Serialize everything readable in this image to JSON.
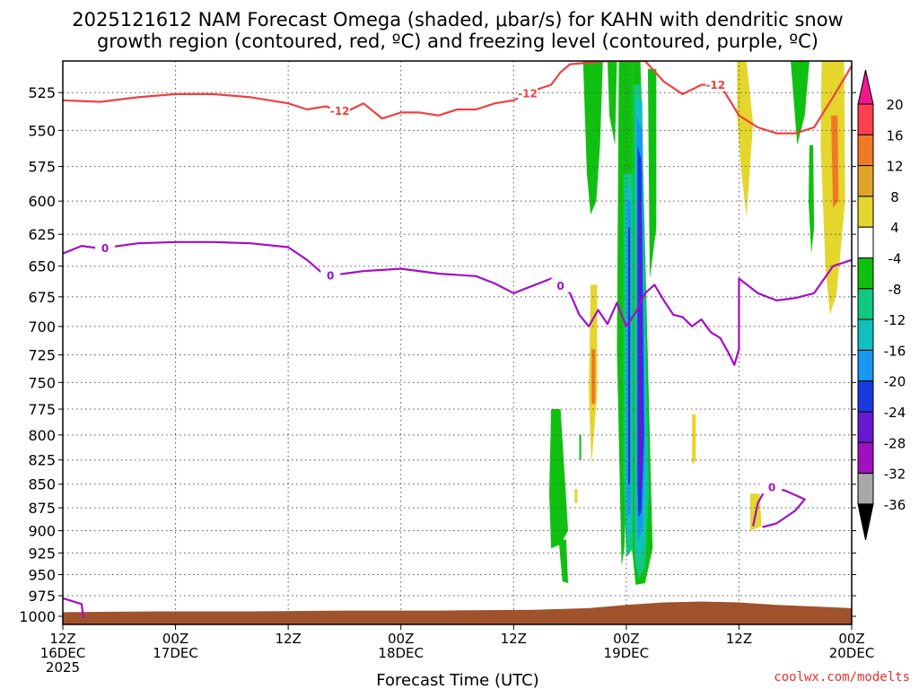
{
  "chart_data": {
    "type": "heatmap",
    "title_lines": [
      "2025121612 NAM Forecast Omega (shaded, μbar/s) for KAHN with dendritic snow",
      "growth region (contoured, red, ºC) and freezing level (contoured, purple, ºC)"
    ],
    "xlabel": "Forecast Time (UTC)",
    "x_ticks": [
      {
        "h": 0,
        "l1": "12Z",
        "l2": "16DEC",
        "l3": "2025"
      },
      {
        "h": 12,
        "l1": "00Z",
        "l2": "17DEC"
      },
      {
        "h": 24,
        "l1": "12Z"
      },
      {
        "h": 36,
        "l1": "00Z",
        "l2": "18DEC"
      },
      {
        "h": 48,
        "l1": "12Z"
      },
      {
        "h": 60,
        "l1": "00Z",
        "l2": "19DEC"
      },
      {
        "h": 72,
        "l1": "12Z"
      },
      {
        "h": 84,
        "l1": "00Z",
        "l2": "20DEC"
      }
    ],
    "x_range_hours": [
      0,
      84
    ],
    "y_ticks": [
      525,
      550,
      575,
      600,
      625,
      650,
      675,
      700,
      725,
      750,
      775,
      800,
      825,
      850,
      875,
      900,
      925,
      950,
      975,
      1000
    ],
    "y_range_hpa": [
      505,
      1010
    ],
    "y_scale": "log-pressure, inverted",
    "grid": true,
    "colorbar": {
      "labels": [
        "20",
        "16",
        "12",
        "8",
        "4",
        "-4",
        "-8",
        "-12",
        "-16",
        "-20",
        "-24",
        "-28",
        "-32",
        "-36"
      ],
      "colors": [
        "#ff4050",
        "#f07a24",
        "#e2a428",
        "#e4d62c",
        "#ffffff",
        "#10c010",
        "#10c880",
        "#10c0c0",
        "#1898f0",
        "#1838e0",
        "#6818d0",
        "#a010c0",
        "#a8a8a8"
      ],
      "top_arrow_color": "#f0188c",
      "bottom_arrow_color": "#000000"
    },
    "series": [
      {
        "name": "dendritic snow growth region (contoured, red, ºC)",
        "contour_value": "-12",
        "color": "#f04040",
        "points": [
          [
            0,
            530
          ],
          [
            4,
            531
          ],
          [
            8,
            528
          ],
          [
            12,
            526
          ],
          [
            16,
            526
          ],
          [
            20,
            528
          ],
          [
            24,
            532
          ],
          [
            26,
            536
          ],
          [
            28,
            534
          ],
          [
            30,
            538
          ],
          [
            32,
            532
          ],
          [
            34,
            542
          ],
          [
            36,
            538
          ],
          [
            38,
            538
          ],
          [
            40,
            540
          ],
          [
            42,
            536
          ],
          [
            44,
            536
          ],
          [
            46,
            532
          ],
          [
            48,
            530
          ],
          [
            50,
            524
          ],
          [
            52,
            520
          ],
          [
            53,
            512
          ],
          [
            54,
            507
          ],
          [
            56,
            506
          ],
          [
            58,
            505
          ],
          [
            62,
            505
          ],
          [
            64,
            518
          ],
          [
            66,
            526
          ],
          [
            68,
            520
          ],
          [
            70,
            520
          ],
          [
            72,
            540
          ],
          [
            74,
            548
          ],
          [
            76,
            552
          ],
          [
            78,
            552
          ],
          [
            80,
            548
          ],
          [
            82,
            528
          ],
          [
            84,
            508
          ]
        ],
        "labels_at_hours": [
          29.5,
          49.5,
          69.5
        ]
      },
      {
        "name": "freezing level (contoured, purple, ºC)",
        "contour_value": "0",
        "color": "#a010c8",
        "points": [
          [
            0,
            640
          ],
          [
            2,
            634
          ],
          [
            4,
            636
          ],
          [
            8,
            632
          ],
          [
            12,
            631
          ],
          [
            16,
            631
          ],
          [
            20,
            632
          ],
          [
            24,
            635
          ],
          [
            26,
            645
          ],
          [
            28,
            658
          ],
          [
            30,
            656
          ],
          [
            32,
            654
          ],
          [
            34,
            653
          ],
          [
            36,
            652
          ],
          [
            40,
            656
          ],
          [
            44,
            658
          ],
          [
            46,
            664
          ],
          [
            48,
            672
          ],
          [
            50,
            666
          ],
          [
            52,
            660
          ],
          [
            54,
            672
          ],
          [
            55,
            690
          ],
          [
            56,
            700
          ],
          [
            57,
            686
          ],
          [
            58,
            698
          ],
          [
            59,
            680
          ],
          [
            60,
            700
          ],
          [
            61,
            688
          ],
          [
            62,
            672
          ],
          [
            63,
            665
          ],
          [
            64,
            678
          ],
          [
            65,
            690
          ],
          [
            66,
            692
          ],
          [
            67,
            700
          ],
          [
            68,
            694
          ],
          [
            69,
            705
          ],
          [
            70,
            710
          ],
          [
            71,
            725
          ],
          [
            71.5,
            734
          ],
          [
            72,
            720
          ],
          [
            72,
            660
          ],
          [
            74,
            672
          ],
          [
            76,
            678
          ],
          [
            78,
            676
          ],
          [
            80,
            672
          ],
          [
            82,
            650
          ],
          [
            84,
            645
          ]
        ],
        "labels_at_hours": [
          4.5,
          28.5,
          53.0
        ]
      },
      {
        "name": "freezing level low-level segment",
        "contour_value": "0",
        "color": "#a010c8",
        "points": [
          [
            0,
            978
          ],
          [
            2,
            985
          ],
          [
            2.2,
            1002
          ]
        ]
      },
      {
        "name": "freezing level closed contour",
        "contour_value": "0",
        "color": "#a010c8",
        "points": [
          [
            73.5,
            895
          ],
          [
            74,
            870
          ],
          [
            75,
            852
          ],
          [
            77,
            857
          ],
          [
            79,
            866
          ],
          [
            78,
            878
          ],
          [
            76,
            892
          ],
          [
            74.5,
            896
          ]
        ],
        "labels_at_hours": [
          75.5
        ]
      }
    ],
    "terrain": {
      "color": "#a0522d",
      "top_pressure": [
        [
          0,
          995
        ],
        [
          10,
          994
        ],
        [
          20,
          994
        ],
        [
          30,
          993
        ],
        [
          40,
          993
        ],
        [
          50,
          992
        ],
        [
          56,
          990
        ],
        [
          60,
          986
        ],
        [
          64,
          983
        ],
        [
          68,
          982
        ],
        [
          72,
          983
        ],
        [
          76,
          986
        ],
        [
          80,
          988
        ],
        [
          84,
          990
        ]
      ]
    },
    "shaded_regions": [
      {
        "color": "#e4d62c",
        "pts": [
          [
            71.8,
            505
          ],
          [
            72.8,
            505
          ],
          [
            73.5,
            545
          ],
          [
            72.8,
            612
          ],
          [
            72.2,
            575
          ],
          [
            71.8,
            540
          ]
        ]
      },
      {
        "color": "#e4d62c",
        "pts": [
          [
            80.8,
            505
          ],
          [
            83.2,
            505
          ],
          [
            83.3,
            600
          ],
          [
            82.4,
            672
          ],
          [
            81.7,
            690
          ],
          [
            81.2,
            650
          ],
          [
            80.7,
            560
          ]
        ]
      },
      {
        "color": "#f07a24",
        "pts": [
          [
            81.8,
            540
          ],
          [
            82.5,
            540
          ],
          [
            82.6,
            600
          ],
          [
            82.0,
            605
          ]
        ]
      },
      {
        "color": "#10c010",
        "pts": [
          [
            77.5,
            505
          ],
          [
            79.5,
            505
          ],
          [
            79.0,
            540
          ],
          [
            78.2,
            560
          ]
        ]
      },
      {
        "color": "#10c010",
        "pts": [
          [
            79.5,
            560
          ],
          [
            79.9,
            560
          ],
          [
            80.0,
            620
          ],
          [
            79.7,
            640
          ],
          [
            79.4,
            600
          ]
        ]
      },
      {
        "color": "#e4d62c",
        "pts": [
          [
            56.2,
            665
          ],
          [
            56.9,
            665
          ],
          [
            56.9,
            760
          ],
          [
            56.3,
            830
          ],
          [
            56.0,
            760
          ]
        ]
      },
      {
        "color": "#f07a24",
        "pts": [
          [
            56.3,
            720
          ],
          [
            56.7,
            720
          ],
          [
            56.7,
            770
          ],
          [
            56.3,
            770
          ]
        ]
      },
      {
        "color": "#e4d62c",
        "pts": [
          [
            67.0,
            780
          ],
          [
            67.4,
            780
          ],
          [
            67.4,
            825
          ],
          [
            67.0,
            830
          ]
        ]
      },
      {
        "color": "#e4d62c",
        "pts": [
          [
            73.2,
            860
          ],
          [
            74.2,
            860
          ],
          [
            74.4,
            895
          ],
          [
            73.2,
            900
          ]
        ]
      },
      {
        "color": "#e4d62c",
        "pts": [
          [
            54.5,
            855
          ],
          [
            54.8,
            855
          ],
          [
            54.8,
            870
          ],
          [
            54.5,
            870
          ]
        ]
      },
      {
        "color": "#10c010",
        "pts": [
          [
            55.4,
            505
          ],
          [
            57.5,
            505
          ],
          [
            57.2,
            560
          ],
          [
            56.8,
            600
          ],
          [
            56.2,
            610
          ],
          [
            55.8,
            580
          ]
        ]
      },
      {
        "color": "#10c010",
        "pts": [
          [
            58.0,
            505
          ],
          [
            59.0,
            505
          ],
          [
            58.8,
            560
          ],
          [
            58.2,
            540
          ]
        ]
      },
      {
        "color": "#10c010",
        "pts": [
          [
            59.2,
            505
          ],
          [
            60.6,
            505
          ],
          [
            60.6,
            640
          ],
          [
            59.8,
            920
          ],
          [
            59.5,
            940
          ],
          [
            59.0,
            720
          ]
        ]
      },
      {
        "color": "#10c010",
        "pts": [
          [
            60.6,
            505
          ],
          [
            61.5,
            505
          ],
          [
            62.5,
            800
          ],
          [
            62.8,
            920
          ],
          [
            62.0,
            960
          ],
          [
            61.0,
            962
          ],
          [
            60.6,
            920
          ]
        ]
      },
      {
        "color": "#10c010",
        "pts": [
          [
            62.3,
            510
          ],
          [
            63.2,
            510
          ],
          [
            63.2,
            620
          ],
          [
            62.5,
            660
          ]
        ]
      },
      {
        "color": "#10c010",
        "pts": [
          [
            52.0,
            775
          ],
          [
            53.0,
            775
          ],
          [
            53.8,
            900
          ],
          [
            53.0,
            915
          ],
          [
            52.0,
            920
          ],
          [
            51.8,
            860
          ]
        ]
      },
      {
        "color": "#10c010",
        "pts": [
          [
            52.8,
            910
          ],
          [
            53.6,
            910
          ],
          [
            53.8,
            960
          ],
          [
            53.2,
            958
          ]
        ]
      },
      {
        "color": "#10c010",
        "pts": [
          [
            55.0,
            800
          ],
          [
            55.2,
            800
          ],
          [
            55.2,
            825
          ],
          [
            55.0,
            825
          ]
        ]
      },
      {
        "color": "#10c880",
        "pts": [
          [
            59.7,
            580
          ],
          [
            60.7,
            580
          ],
          [
            60.7,
            920
          ],
          [
            60.0,
            930
          ],
          [
            59.7,
            840
          ]
        ]
      },
      {
        "color": "#10c880",
        "pts": [
          [
            60.8,
            520
          ],
          [
            61.6,
            520
          ],
          [
            62.4,
            860
          ],
          [
            62.0,
            940
          ],
          [
            61.3,
            955
          ],
          [
            60.9,
            930
          ]
        ]
      },
      {
        "color": "#10c0c0",
        "pts": [
          [
            59.9,
            590
          ],
          [
            60.6,
            590
          ],
          [
            60.6,
            900
          ],
          [
            60.0,
            910
          ]
        ]
      },
      {
        "color": "#10c0c0",
        "pts": [
          [
            61.0,
            530
          ],
          [
            61.7,
            530
          ],
          [
            62.2,
            840
          ],
          [
            61.8,
            920
          ],
          [
            61.2,
            935
          ],
          [
            61.0,
            900
          ]
        ]
      },
      {
        "color": "#1898f0",
        "pts": [
          [
            60.1,
            600
          ],
          [
            60.5,
            600
          ],
          [
            60.5,
            880
          ],
          [
            60.1,
            885
          ]
        ]
      },
      {
        "color": "#1898f0",
        "pts": [
          [
            61.1,
            540
          ],
          [
            61.7,
            550
          ],
          [
            62.0,
            820
          ],
          [
            61.7,
            900
          ],
          [
            61.3,
            910
          ],
          [
            61.1,
            880
          ]
        ]
      },
      {
        "color": "#1838e0",
        "pts": [
          [
            60.2,
            620
          ],
          [
            60.4,
            620
          ],
          [
            60.4,
            850
          ],
          [
            60.2,
            850
          ]
        ]
      },
      {
        "color": "#1838e0",
        "pts": [
          [
            61.2,
            560
          ],
          [
            61.6,
            570
          ],
          [
            61.9,
            800
          ],
          [
            61.6,
            880
          ],
          [
            61.3,
            885
          ],
          [
            61.2,
            850
          ]
        ]
      },
      {
        "color": "#6818d0",
        "pts": [
          [
            61.3,
            600
          ],
          [
            61.5,
            600
          ],
          [
            61.7,
            820
          ],
          [
            61.5,
            860
          ],
          [
            61.4,
            860
          ],
          [
            61.3,
            830
          ]
        ]
      }
    ]
  },
  "credit": "coolwx.com/modelts"
}
